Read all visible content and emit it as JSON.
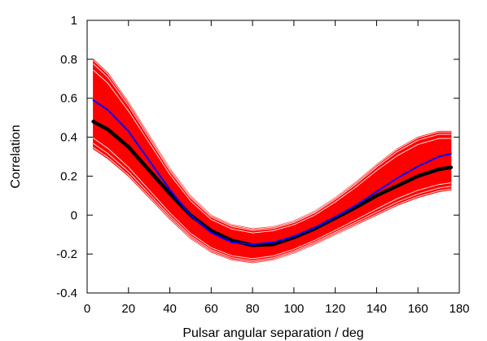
{
  "chart_data": {
    "type": "line",
    "title": "",
    "xlabel": "Pulsar angular separation / deg",
    "ylabel": "Correlation",
    "xlim": [
      0,
      180
    ],
    "ylim": [
      -0.4,
      1.0
    ],
    "xticks": [
      0,
      20,
      40,
      60,
      80,
      100,
      120,
      140,
      160,
      180
    ],
    "yticks": [
      -0.4,
      -0.2,
      0,
      0.2,
      0.4,
      0.6,
      0.8,
      1
    ],
    "grid": false,
    "legend": "none",
    "colors": {
      "band": "#ff0000",
      "envelope": "#ffffff",
      "mean": "#000000",
      "theory": "#0000ff"
    },
    "x": [
      3,
      10,
      20,
      30,
      40,
      50,
      60,
      70,
      80,
      90,
      100,
      110,
      120,
      130,
      140,
      150,
      160,
      170,
      176
    ],
    "series": [
      {
        "values": [
          0.48,
          0.44,
          0.35,
          0.23,
          0.11,
          0.0,
          -0.08,
          -0.13,
          -0.155,
          -0.15,
          -0.115,
          -0.07,
          -0.015,
          0.04,
          0.1,
          0.15,
          0.2,
          0.235,
          0.245
        ]
      },
      {
        "values": [
          0.59,
          0.54,
          0.43,
          0.28,
          0.13,
          0.0,
          -0.09,
          -0.14,
          -0.15,
          -0.14,
          -0.11,
          -0.065,
          -0.01,
          0.05,
          0.12,
          0.19,
          0.25,
          0.3,
          0.315
        ]
      },
      {
        "values": [
          0.8,
          0.73,
          0.58,
          0.41,
          0.24,
          0.1,
          0.0,
          -0.05,
          -0.07,
          -0.06,
          -0.03,
          0.02,
          0.09,
          0.17,
          0.26,
          0.34,
          0.4,
          0.43,
          0.43
        ]
      },
      {
        "values": [
          0.34,
          0.29,
          0.2,
          0.09,
          -0.02,
          -0.12,
          -0.19,
          -0.23,
          -0.245,
          -0.23,
          -0.195,
          -0.15,
          -0.1,
          -0.05,
          0.0,
          0.05,
          0.09,
          0.12,
          0.13
        ]
      }
    ]
  }
}
